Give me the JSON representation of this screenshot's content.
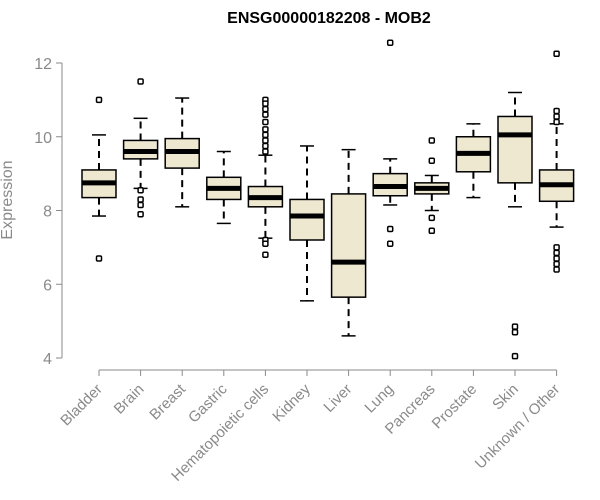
{
  "chart_data": {
    "type": "box",
    "title": "ENSG00000182208 - MOB2",
    "ylabel": "Expression",
    "xlabel": "",
    "ylim": [
      4,
      12
    ],
    "yticks": [
      4,
      6,
      8,
      10,
      12
    ],
    "grid": false,
    "box_fill": "#efe8d1",
    "categories": [
      "Bladder",
      "Brain",
      "Breast",
      "Gastric",
      "Hematopoietic cells",
      "Kidney",
      "Liver",
      "Lung",
      "Pancreas",
      "Prostate",
      "Skin",
      "Unknown / Other"
    ],
    "boxes": [
      {
        "whisker_low": 7.85,
        "q1": 8.35,
        "median": 8.75,
        "q3": 9.1,
        "whisker_high": 10.05,
        "outliers": [
          11.0,
          6.7
        ]
      },
      {
        "whisker_low": 8.6,
        "q1": 9.4,
        "median": 9.6,
        "q3": 9.9,
        "whisker_high": 10.5,
        "outliers": [
          11.5,
          8.55,
          8.3,
          8.15,
          7.9
        ]
      },
      {
        "whisker_low": 8.1,
        "q1": 9.15,
        "median": 9.6,
        "q3": 9.95,
        "whisker_high": 11.05,
        "outliers": []
      },
      {
        "whisker_low": 7.65,
        "q1": 8.3,
        "median": 8.6,
        "q3": 8.9,
        "whisker_high": 9.6,
        "outliers": []
      },
      {
        "whisker_low": 7.25,
        "q1": 8.1,
        "median": 8.35,
        "q3": 8.65,
        "whisker_high": 9.5,
        "outliers": [
          11.0,
          10.9,
          10.75,
          10.6,
          10.4,
          10.2,
          10.05,
          9.9,
          9.75,
          9.6,
          7.2,
          7.1,
          6.8
        ]
      },
      {
        "whisker_low": 5.55,
        "q1": 7.2,
        "median": 7.85,
        "q3": 8.3,
        "whisker_high": 9.75,
        "outliers": []
      },
      {
        "whisker_low": 4.6,
        "q1": 5.65,
        "median": 6.6,
        "q3": 8.45,
        "whisker_high": 9.65,
        "outliers": []
      },
      {
        "whisker_low": 8.15,
        "q1": 8.4,
        "median": 8.65,
        "q3": 9.0,
        "whisker_high": 9.4,
        "outliers": [
          12.55,
          7.5,
          7.1
        ]
      },
      {
        "whisker_low": 8.0,
        "q1": 8.45,
        "median": 8.6,
        "q3": 8.75,
        "whisker_high": 8.95,
        "outliers": [
          9.9,
          9.35,
          7.8,
          7.45
        ]
      },
      {
        "whisker_low": 8.35,
        "q1": 9.05,
        "median": 9.55,
        "q3": 10.0,
        "whisker_high": 10.35,
        "outliers": []
      },
      {
        "whisker_low": 8.1,
        "q1": 8.75,
        "median": 10.05,
        "q3": 10.55,
        "whisker_high": 11.2,
        "outliers": [
          4.85,
          4.7,
          4.05
        ]
      },
      {
        "whisker_low": 7.55,
        "q1": 8.25,
        "median": 8.7,
        "q3": 9.1,
        "whisker_high": 10.35,
        "outliers": [
          12.25,
          10.7,
          10.55,
          10.4,
          7.0,
          6.85,
          6.7,
          6.55,
          6.4
        ]
      }
    ]
  }
}
